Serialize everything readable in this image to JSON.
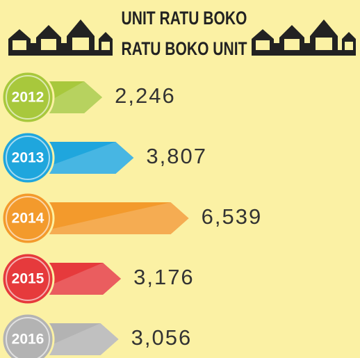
{
  "chart_data": {
    "type": "bar",
    "title": "UNIT RATU BOKO",
    "subtitle": "RATU BOKO UNIT",
    "categories": [
      "2012",
      "2013",
      "2014",
      "2015",
      "2016"
    ],
    "values": [
      2246,
      3807,
      6539,
      3176,
      3056
    ],
    "value_labels": [
      "2,246",
      "3,807",
      "6,539",
      "3,176",
      "3,056"
    ],
    "colors": [
      "#a8c83c",
      "#1fa6dd",
      "#f39a2c",
      "#e63a3c",
      "#b3b3b3"
    ]
  }
}
